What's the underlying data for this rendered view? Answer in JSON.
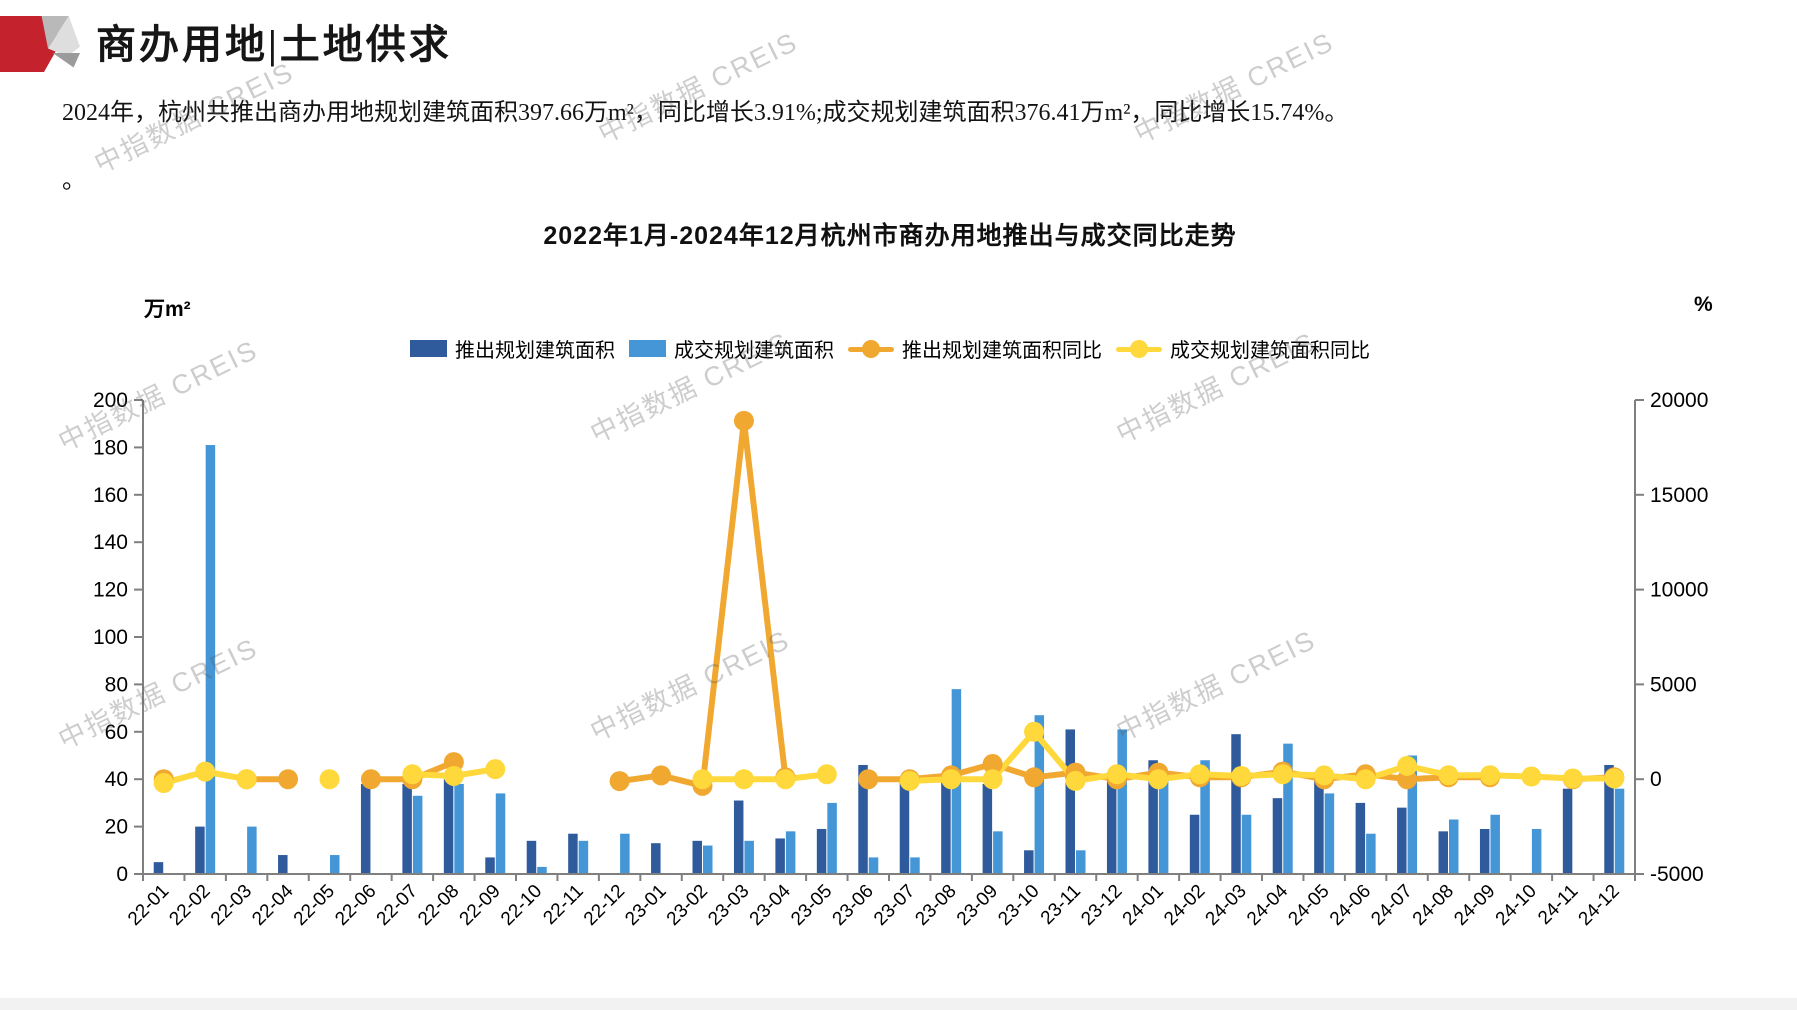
{
  "header": {
    "title": "商办用地|土地供求"
  },
  "summary": {
    "line1": "2024年，杭州共推出商办用地规划建筑面积397.66万m²，同比增长3.91%;成交规划建筑面积376.41万m²，同比增长15.74%。",
    "line2": "。"
  },
  "watermark": {
    "text": "中指数据 CREIS"
  },
  "colors": {
    "bar_dark_blue": "#2F5B9D",
    "bar_light_blue": "#4496D6",
    "line_orange": "#F0A830",
    "line_yellow": "#FFD83B",
    "axis_gray": "#7f7f7f",
    "logo_red": "#c4232d"
  },
  "chart_data": {
    "type": "bar",
    "subtype": "combo-bar-line-dual-axis",
    "title": "2022年1月-2024年12月杭州市商办用地推出与成交同比走势",
    "left_axis": {
      "unit": "万m²",
      "min": 0,
      "max": 200,
      "step": 20
    },
    "right_axis": {
      "unit": "%",
      "min": -5000,
      "max": 20000,
      "step": 5000
    },
    "grid": "off",
    "legend_position": "top-center",
    "categories": [
      "22-01",
      "22-02",
      "22-03",
      "22-04",
      "22-05",
      "22-06",
      "22-07",
      "22-08",
      "22-09",
      "22-10",
      "22-11",
      "22-12",
      "23-01",
      "23-02",
      "23-03",
      "23-04",
      "23-05",
      "23-06",
      "23-07",
      "23-08",
      "23-09",
      "23-10",
      "23-11",
      "23-12",
      "24-01",
      "24-02",
      "24-03",
      "24-04",
      "24-05",
      "24-06",
      "24-07",
      "24-08",
      "24-09",
      "24-10",
      "24-11",
      "24-12"
    ],
    "series": [
      {
        "name": "推出规划建筑面积",
        "type": "bar",
        "axis": "left",
        "color": "#2F5B9D",
        "values": [
          5,
          20,
          0,
          8,
          0,
          38,
          38,
          40,
          7,
          14,
          17,
          0,
          13,
          14,
          31,
          15,
          19,
          46,
          40,
          40,
          38,
          10,
          61,
          43,
          48,
          25,
          59,
          32,
          41,
          30,
          28,
          18,
          19,
          0,
          36,
          46
        ]
      },
      {
        "name": "成交规划建筑面积",
        "type": "bar",
        "axis": "left",
        "color": "#4496D6",
        "values": [
          0,
          181,
          20,
          0,
          8,
          0,
          33,
          38,
          34,
          3,
          14,
          17,
          0,
          12,
          14,
          18,
          30,
          7,
          7,
          78,
          18,
          67,
          10,
          61,
          42,
          48,
          25,
          55,
          34,
          17,
          50,
          23,
          25,
          19,
          0,
          36
        ]
      },
      {
        "name": "推出规划建筑面积同比",
        "type": "line",
        "axis": "right",
        "color": "#F0A830",
        "values": [
          0,
          null,
          0,
          0,
          null,
          0,
          0,
          900,
          null,
          null,
          null,
          -100,
          200,
          -350,
          18900,
          100,
          null,
          0,
          0,
          200,
          800,
          100,
          350,
          0,
          350,
          100,
          100,
          400,
          0,
          260,
          0,
          100,
          100,
          null,
          0,
          100
        ]
      },
      {
        "name": "成交规划建筑面积同比",
        "type": "line",
        "axis": "right",
        "color": "#FFD83B",
        "values": [
          -200,
          400,
          0,
          null,
          0,
          null,
          260,
          170,
          530,
          null,
          null,
          null,
          null,
          0,
          0,
          0,
          260,
          null,
          -90,
          0,
          0,
          2500,
          -90,
          260,
          0,
          260,
          170,
          260,
          200,
          0,
          700,
          210,
          210,
          140,
          40,
          40
        ]
      }
    ]
  }
}
